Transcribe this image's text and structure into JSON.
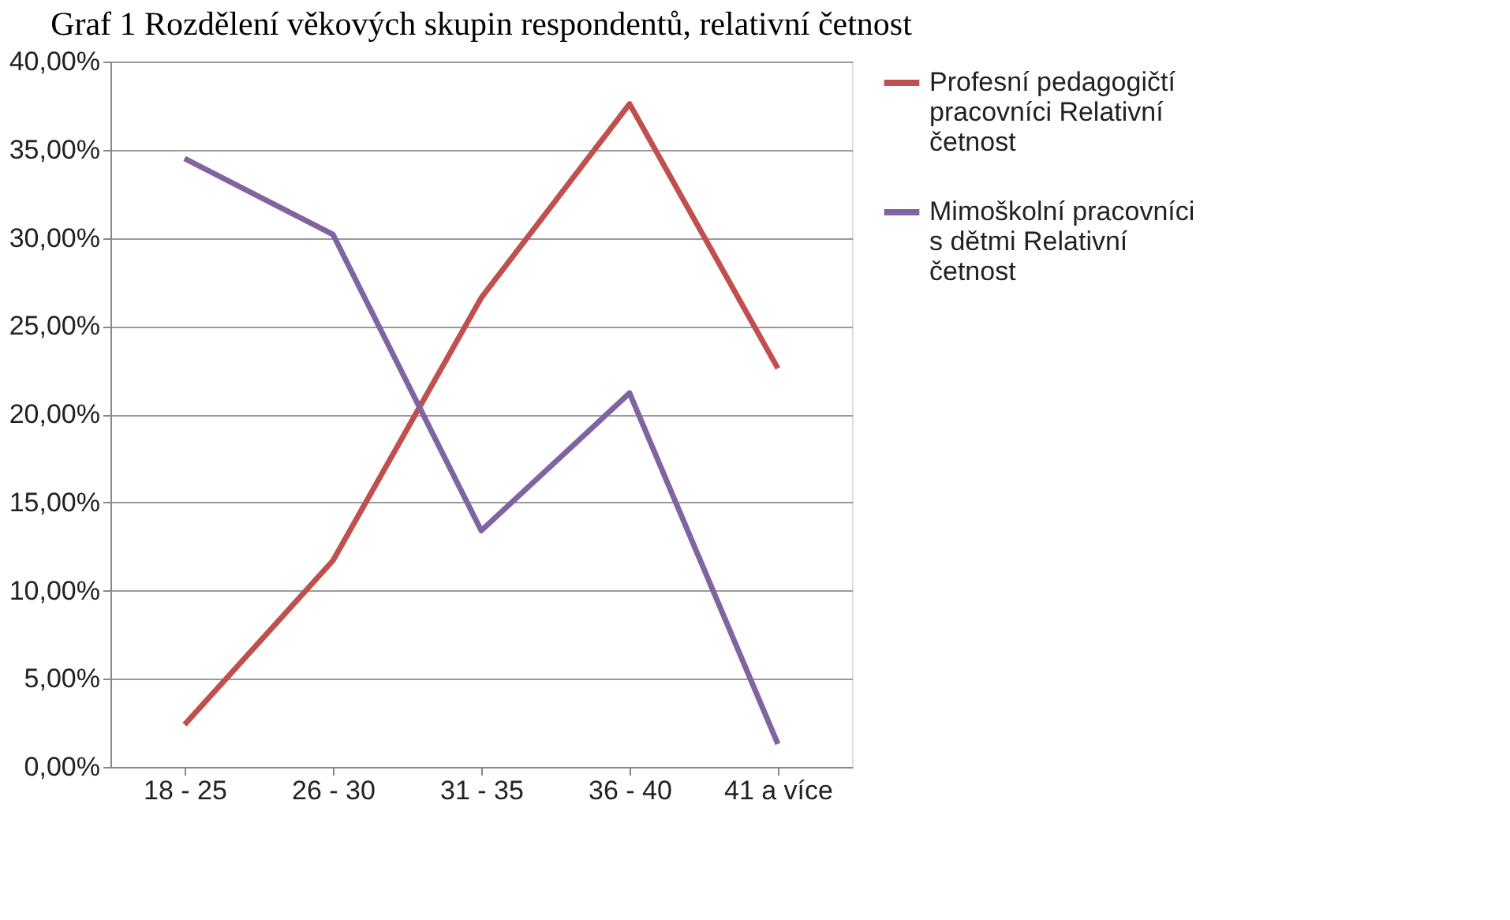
{
  "chart_data": {
    "type": "line",
    "title": "Graf 1 Rozdělení věkových skupin respondentů, relativní četnost",
    "categories": [
      "18 - 25",
      "26 - 30",
      "31 - 35",
      "36 - 40",
      "41 a více"
    ],
    "series": [
      {
        "name": "Profesní pedagogičtí pracovníci Relativní četnost",
        "color": "#c0504d",
        "values": [
          2.4,
          11.7,
          26.6,
          37.6,
          22.6
        ]
      },
      {
        "name": "Mimoškolní pracovníci s dětmi Relativní četnost",
        "color": "#8064a2",
        "values": [
          34.5,
          30.2,
          13.4,
          21.2,
          1.3
        ]
      }
    ],
    "ylim": [
      0,
      40
    ],
    "yticks": [
      {
        "value": 0,
        "label": "0,00%"
      },
      {
        "value": 5,
        "label": "5,00%"
      },
      {
        "value": 10,
        "label": "10,00%"
      },
      {
        "value": 15,
        "label": "15,00%"
      },
      {
        "value": 20,
        "label": "20,00%"
      },
      {
        "value": 25,
        "label": "25,00%"
      },
      {
        "value": 30,
        "label": "30,00%"
      },
      {
        "value": 35,
        "label": "35,00%"
      },
      {
        "value": 40,
        "label": "40,00%"
      }
    ],
    "grid": "y",
    "legend": "right",
    "marker": "none",
    "line_style": "solid"
  }
}
